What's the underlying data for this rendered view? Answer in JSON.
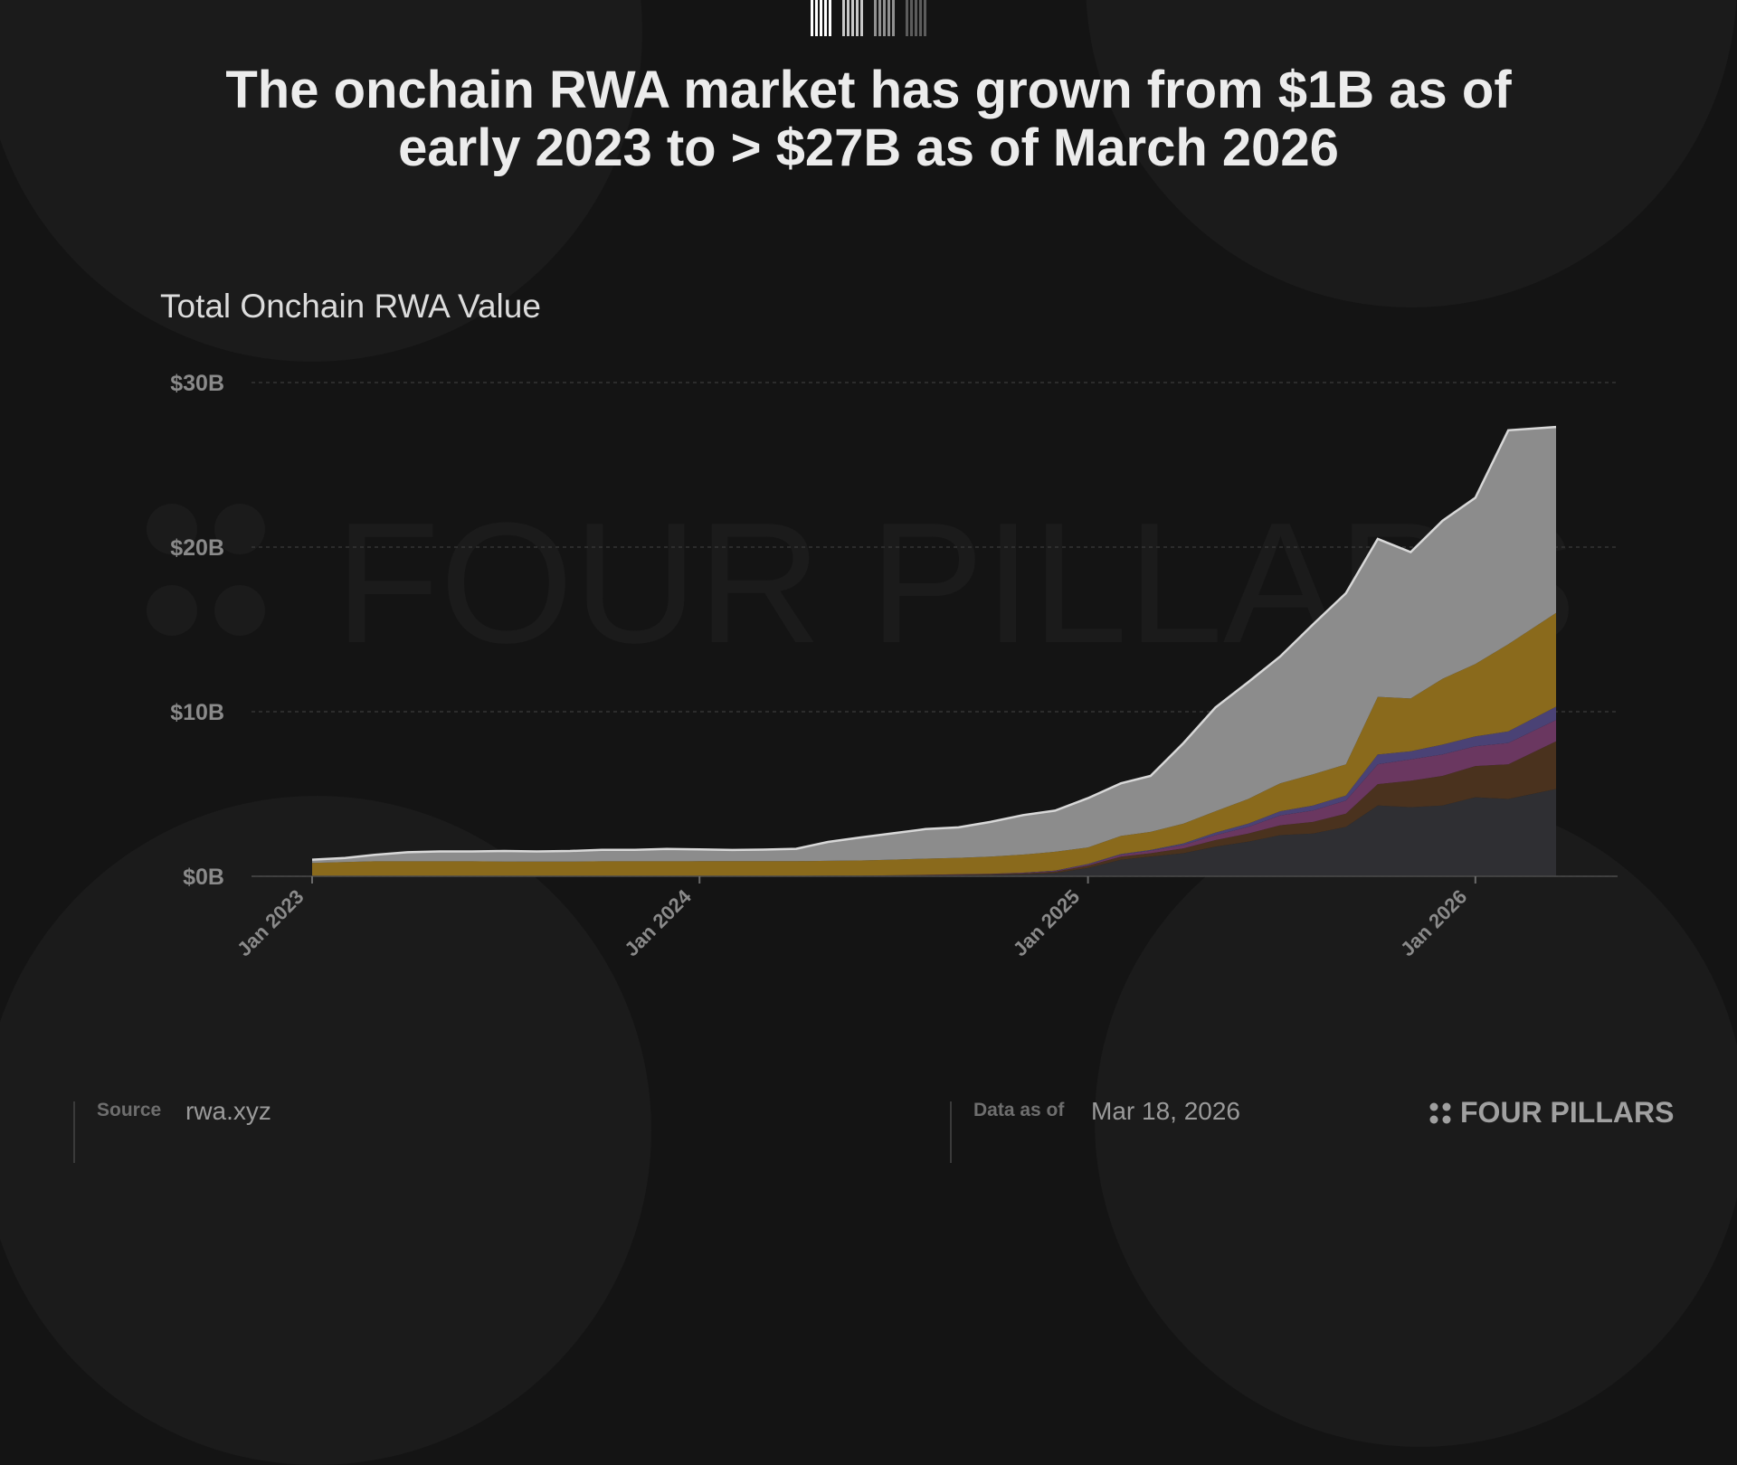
{
  "headline": {
    "line1": "The onchain RWA market has grown from $1B as of",
    "line2": "early 2023 to > $27B as of March 2026"
  },
  "colors": {
    "background": "#141414",
    "total": "#8c8c8c",
    "gold": "#8a6a1c",
    "blue_purple": "#4a4275",
    "magenta": "#6a3760",
    "brown": "#4a321e",
    "dark_gray": "#2f2f33",
    "watermark": "#1b1b1b"
  },
  "footer": {
    "source_label": "Source",
    "source_value": "rwa.xyz",
    "data_as_of_label": "Data as of",
    "data_as_of_value": "Mar 18, 2026",
    "brand": "FOUR PILLARS",
    "brand_icon": "four-dots-icon"
  },
  "chart_data": {
    "type": "area",
    "stacked": true,
    "title": "Total Onchain RWA Value",
    "xlabel": "",
    "ylabel": "",
    "watermark": "FOUR PILLARS",
    "x_ticks": [
      "Jan 2023",
      "Jan 2024",
      "Jan 2025",
      "Jan 2026"
    ],
    "y_ticks": [
      "$0B",
      "$10B",
      "$20B",
      "$30B"
    ],
    "ylim": [
      0,
      30
    ],
    "grid": true,
    "legend": "none",
    "x": [
      "2023-01-01",
      "2023-02-01",
      "2023-03-01",
      "2023-04-01",
      "2023-05-01",
      "2023-06-01",
      "2023-07-01",
      "2023-08-01",
      "2023-09-01",
      "2023-10-01",
      "2023-11-01",
      "2023-12-01",
      "2024-01-01",
      "2024-02-01",
      "2024-03-01",
      "2024-04-01",
      "2024-05-01",
      "2024-06-01",
      "2024-07-01",
      "2024-08-01",
      "2024-09-01",
      "2024-10-01",
      "2024-11-01",
      "2024-12-01",
      "2025-01-01",
      "2025-02-01",
      "2025-03-01",
      "2025-04-01",
      "2025-05-01",
      "2025-06-01",
      "2025-07-01",
      "2025-08-01",
      "2025-09-01",
      "2025-10-01",
      "2025-11-01",
      "2025-12-01",
      "2026-01-01",
      "2026-02-01",
      "2026-03-18"
    ],
    "series": [
      {
        "color": "#2f2f33",
        "values": [
          0.01,
          0.01,
          0.01,
          0.01,
          0.01,
          0.01,
          0.01,
          0.01,
          0.01,
          0.01,
          0.01,
          0.01,
          0.02,
          0.02,
          0.02,
          0.02,
          0.03,
          0.03,
          0.04,
          0.05,
          0.06,
          0.08,
          0.12,
          0.2,
          0.5,
          1.0,
          1.2,
          1.4,
          1.8,
          2.1,
          2.5,
          2.6,
          3.0,
          4.3,
          4.2,
          4.3,
          4.8,
          4.7,
          5.3
        ]
      },
      {
        "color": "#4a321e",
        "values": [
          0.0,
          0.0,
          0.0,
          0.0,
          0.0,
          0.0,
          0.0,
          0.0,
          0.0,
          0.0,
          0.0,
          0.0,
          0.0,
          0.0,
          0.0,
          0.0,
          0.01,
          0.01,
          0.01,
          0.02,
          0.03,
          0.04,
          0.05,
          0.08,
          0.15,
          0.2,
          0.2,
          0.3,
          0.4,
          0.5,
          0.6,
          0.7,
          0.8,
          1.3,
          1.6,
          1.8,
          1.9,
          2.1,
          2.9
        ]
      },
      {
        "color": "#6a3760",
        "values": [
          0.0,
          0.0,
          0.0,
          0.0,
          0.0,
          0.0,
          0.0,
          0.0,
          0.0,
          0.0,
          0.0,
          0.0,
          0.0,
          0.0,
          0.0,
          0.0,
          0.0,
          0.0,
          0.01,
          0.01,
          0.02,
          0.02,
          0.03,
          0.04,
          0.05,
          0.1,
          0.15,
          0.2,
          0.3,
          0.4,
          0.6,
          0.7,
          0.8,
          1.2,
          1.3,
          1.3,
          1.2,
          1.3,
          1.3
        ]
      },
      {
        "color": "#4a4275",
        "values": [
          0.0,
          0.0,
          0.0,
          0.0,
          0.0,
          0.0,
          0.0,
          0.0,
          0.0,
          0.0,
          0.0,
          0.0,
          0.0,
          0.0,
          0.0,
          0.0,
          0.0,
          0.0,
          0.0,
          0.01,
          0.01,
          0.01,
          0.02,
          0.02,
          0.05,
          0.05,
          0.05,
          0.1,
          0.15,
          0.2,
          0.25,
          0.3,
          0.3,
          0.6,
          0.5,
          0.6,
          0.6,
          0.7,
          0.8
        ]
      },
      {
        "color": "#8a6a1c",
        "values": [
          0.8,
          0.85,
          0.9,
          0.9,
          0.9,
          0.9,
          0.88,
          0.88,
          0.88,
          0.9,
          0.9,
          0.9,
          0.9,
          0.9,
          0.9,
          0.9,
          0.9,
          0.92,
          0.95,
          0.98,
          1.0,
          1.05,
          1.1,
          1.15,
          1.0,
          1.1,
          1.1,
          1.2,
          1.3,
          1.5,
          1.7,
          1.9,
          1.9,
          3.5,
          3.2,
          4.0,
          4.4,
          5.3,
          5.7
        ]
      },
      {
        "color": "#8c8c8c",
        "values": [
          0.2,
          0.25,
          0.4,
          0.55,
          0.6,
          0.6,
          0.65,
          0.62,
          0.65,
          0.7,
          0.7,
          0.75,
          0.72,
          0.68,
          0.7,
          0.75,
          1.15,
          1.4,
          1.6,
          1.8,
          1.85,
          2.1,
          2.4,
          2.5,
          3.0,
          3.2,
          3.4,
          4.9,
          6.3,
          7.1,
          7.7,
          9.1,
          10.4,
          9.6,
          8.9,
          9.6,
          10.1,
          13.0,
          11.3
        ]
      }
    ],
    "totals": [
      1.0,
      1.1,
      1.3,
      1.45,
      1.5,
      1.5,
      1.55,
      1.5,
      1.55,
      1.6,
      1.6,
      1.65,
      1.65,
      1.6,
      1.6,
      1.65,
      2.1,
      2.35,
      2.6,
      2.85,
      2.95,
      3.3,
      3.7,
      4.0,
      4.75,
      5.65,
      6.1,
      8.1,
      10.25,
      11.8,
      13.35,
      15.3,
      17.2,
      20.5,
      19.7,
      21.6,
      23.0,
      27.1,
      27.3
    ]
  }
}
